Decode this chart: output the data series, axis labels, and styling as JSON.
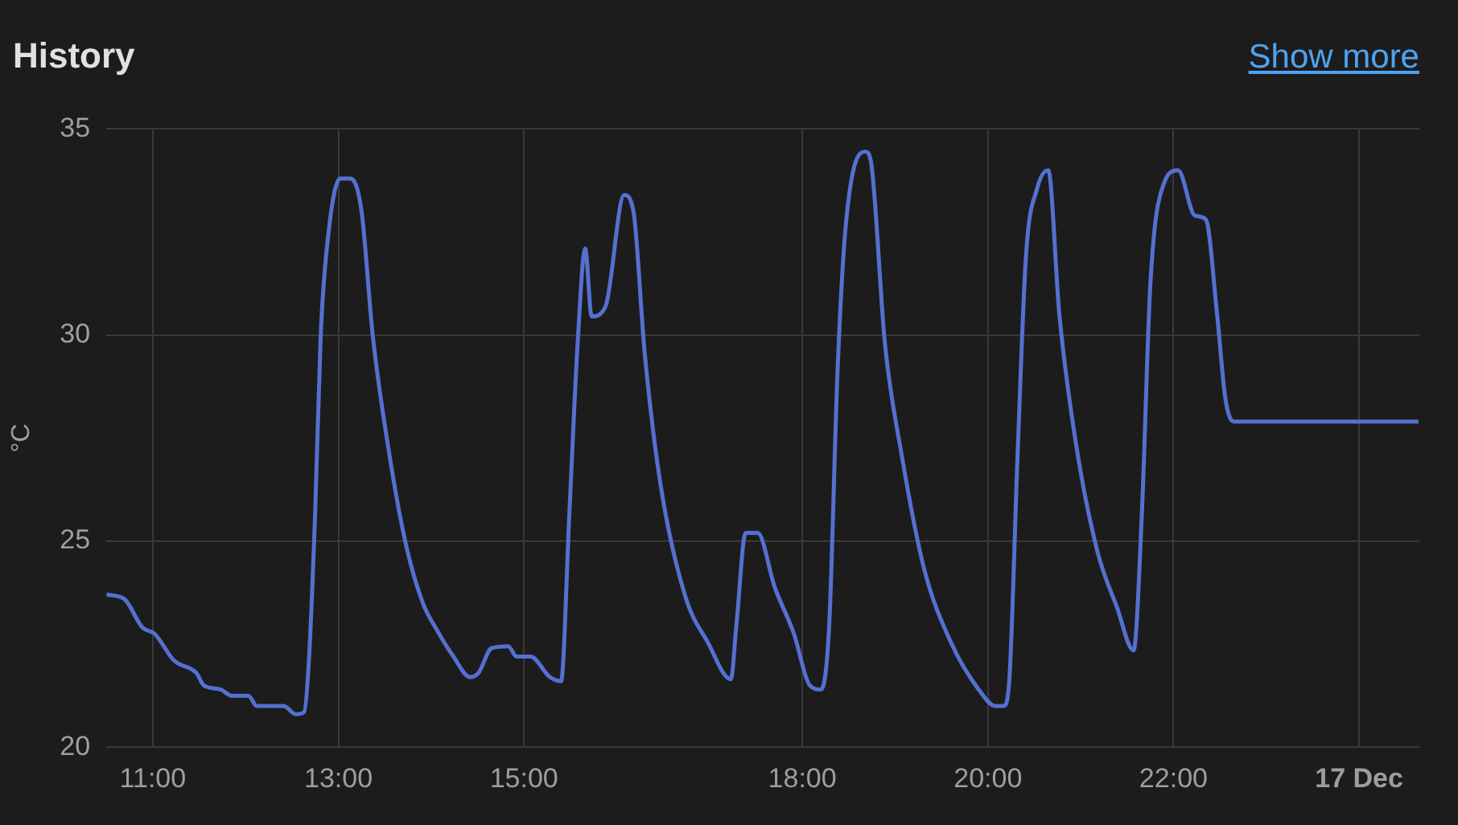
{
  "chart_data": {
    "type": "line",
    "title": "History",
    "ylabel": "°C",
    "annotations": [
      "Show more"
    ],
    "x": [
      10.5,
      10.69,
      10.89,
      11.02,
      11.23,
      11.47,
      11.55,
      11.73,
      11.85,
      12.03,
      12.12,
      12.41,
      12.54,
      12.63,
      12.68,
      12.75,
      12.81,
      12.9,
      13.02,
      13.13,
      13.25,
      13.37,
      13.55,
      13.73,
      13.91,
      14.06,
      14.24,
      14.42,
      14.51,
      14.65,
      14.83,
      14.92,
      15.07,
      15.28,
      15.4,
      15.49,
      15.58,
      15.66,
      15.73,
      15.88,
      16.08,
      16.18,
      16.3,
      16.47,
      16.74,
      16.98,
      17.23,
      17.29,
      17.39,
      17.52,
      17.7,
      17.91,
      18.08,
      18.2,
      18.29,
      18.38,
      18.47,
      18.68,
      18.74,
      18.89,
      19.07,
      19.31,
      19.6,
      19.9,
      20.08,
      20.17,
      20.23,
      20.32,
      20.41,
      20.53,
      20.65,
      20.77,
      20.95,
      21.18,
      21.39,
      21.57,
      21.66,
      21.75,
      21.9,
      22.05,
      22.23,
      22.35,
      22.47,
      22.56,
      22.65,
      24.64
    ],
    "series": [
      {
        "color": "#5470d0",
        "values": [
          23.7,
          23.6,
          22.9,
          22.75,
          22.1,
          21.8,
          21.5,
          21.4,
          21.25,
          21.25,
          21.0,
          21.0,
          20.8,
          20.85,
          22.0,
          25.7,
          30.0,
          32.6,
          33.8,
          33.8,
          33.0,
          30.0,
          27.1,
          24.9,
          23.5,
          22.85,
          22.2,
          21.7,
          21.8,
          22.4,
          22.45,
          22.2,
          22.2,
          21.7,
          21.6,
          25.7,
          29.85,
          32.1,
          30.45,
          30.7,
          33.4,
          33.0,
          29.6,
          26.4,
          23.65,
          22.55,
          21.65,
          22.97,
          25.2,
          25.2,
          23.9,
          22.75,
          21.5,
          21.4,
          22.97,
          29.15,
          32.7,
          34.45,
          34.2,
          29.8,
          27.1,
          24.35,
          22.55,
          21.4,
          21.0,
          21.0,
          21.6,
          27.1,
          31.9,
          33.55,
          34.0,
          30.5,
          27.35,
          24.75,
          23.4,
          22.35,
          25.7,
          31.2,
          33.7,
          34.0,
          32.9,
          32.8,
          30.5,
          28.45,
          27.9,
          27.9
        ]
      }
    ],
    "xlim": [
      10.5,
      24.65
    ],
    "xticks": [
      {
        "value": 11,
        "label": "11:00"
      },
      {
        "value": 13,
        "label": "13:00"
      },
      {
        "value": 15,
        "label": "15:00"
      },
      {
        "value": 18,
        "label": "18:00"
      },
      {
        "value": 20,
        "label": "20:00"
      },
      {
        "value": 22,
        "label": "22:00"
      },
      {
        "value": 24,
        "label": "17 Dec"
      }
    ],
    "ylim": [
      20,
      35
    ],
    "yticks": [
      20,
      25,
      30,
      35
    ],
    "grid": true,
    "legend": false,
    "marker": "none",
    "line_style": "solid"
  }
}
